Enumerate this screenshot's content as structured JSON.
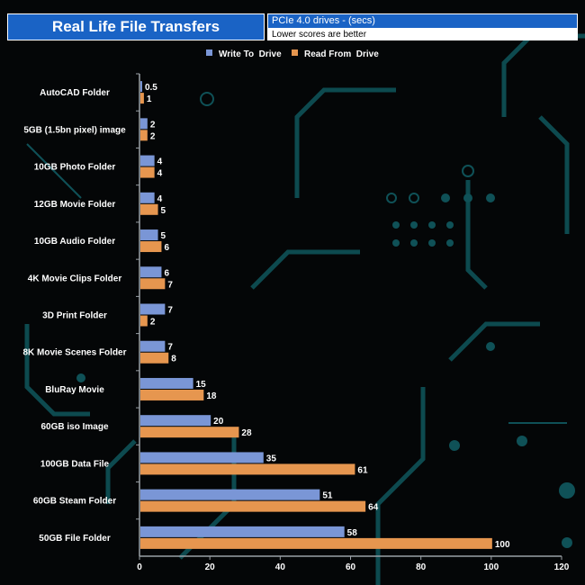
{
  "header": {
    "title": "Real Life File Transfers",
    "subtitle": "PCIe 4.0 drives - (secs)",
    "note": "Lower scores are better"
  },
  "colors": {
    "write": "#7a96d6",
    "read": "#e6964f",
    "accent": "#1a63c5",
    "circuit": "#0d4a4f"
  },
  "chart_data": {
    "type": "bar",
    "orientation": "horizontal",
    "title": "Real Life File Transfers",
    "categories": [
      "AutoCAD Folder",
      "5GB (1.5bn pixel) image",
      "10GB Photo Folder",
      "12GB Movie Folder",
      "10GB Audio Folder",
      "4K Movie Clips Folder",
      "3D Print Folder",
      "8K Movie Scenes Folder",
      "BluRay Movie",
      "60GB iso Image",
      "100GB Data File",
      "60GB Steam Folder",
      "50GB File Folder"
    ],
    "series": [
      {
        "name": "Write To  Drive",
        "values": [
          0.5,
          2,
          4,
          4,
          5,
          6,
          7,
          7,
          15,
          20,
          35,
          51,
          58
        ]
      },
      {
        "name": "Read From  Drive",
        "values": [
          1,
          2,
          4,
          5,
          6,
          7,
          2,
          8,
          18,
          28,
          61,
          64,
          100
        ]
      }
    ],
    "xlim": [
      0,
      120
    ],
    "xticks": [
      "0",
      "20",
      "40",
      "60",
      "80",
      "100",
      "120"
    ],
    "xlabel": "",
    "ylabel": "",
    "legend_position": "top-center"
  }
}
